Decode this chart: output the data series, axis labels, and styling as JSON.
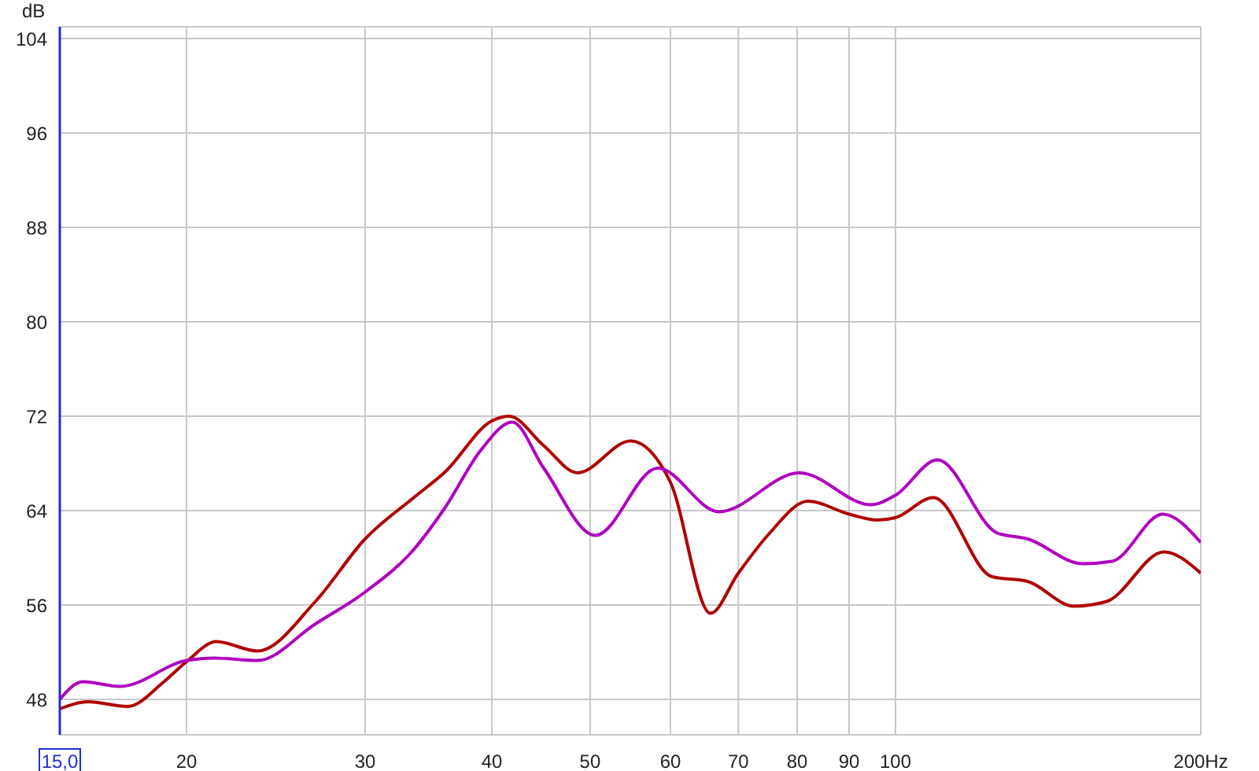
{
  "chart_data": {
    "type": "line",
    "ylabel": "dB",
    "log": "x",
    "grid": true,
    "marker": "none",
    "line_style": "solid",
    "xlim": [
      15,
      200
    ],
    "xticks": [
      {
        "value": 15,
        "label": "15,0"
      },
      20,
      30,
      40,
      50,
      60,
      70,
      80,
      90,
      100,
      {
        "value": 200,
        "label": "200Hz"
      }
    ],
    "ylim": [
      45,
      105
    ],
    "yticks": [
      48,
      56,
      64,
      72,
      80,
      88,
      96,
      104
    ],
    "series": [
      {
        "color": "#b00000",
        "x": [
          15,
          16,
          17.5,
          19,
          20,
          21.4,
          23.5,
          26.8,
          30,
          33.5,
          36,
          40,
          41.6,
          45,
          48.6,
          54.8,
          60,
          65.7,
          70,
          75,
          82,
          90,
          96,
          100,
          109,
          124.5,
          135,
          150,
          161.5,
          184,
          200
        ],
        "values": [
          47.2,
          47.8,
          47.4,
          49.5,
          51.2,
          52.9,
          52.1,
          56.3,
          61.6,
          65.1,
          67.3,
          71.6,
          72,
          69.5,
          67.2,
          69.9,
          66.4,
          55.3,
          58.7,
          62,
          64.8,
          63.7,
          63.2,
          63.4,
          65.1,
          58.4,
          58,
          55.9,
          56.3,
          60.5,
          58.7
        ]
      },
      {
        "color": "#b000c0",
        "x": [
          15,
          15.8,
          17.2,
          20,
          21.3,
          23.5,
          26.8,
          30,
          33.5,
          36,
          39,
          41.9,
          45,
          50.6,
          58.3,
          67,
          80.4,
          94.6,
          100,
          110,
          126,
          135,
          153,
          163.5,
          183.5,
          200
        ],
        "values": [
          48,
          49.5,
          49.1,
          51.3,
          51.5,
          51.3,
          54.4,
          57.1,
          60.7,
          64.3,
          69.1,
          71.5,
          67.6,
          61.9,
          67.6,
          63.9,
          67.2,
          64.5,
          65.3,
          68.3,
          62.1,
          61.6,
          59.5,
          59.7,
          63.7,
          61.3
        ]
      }
    ]
  }
}
